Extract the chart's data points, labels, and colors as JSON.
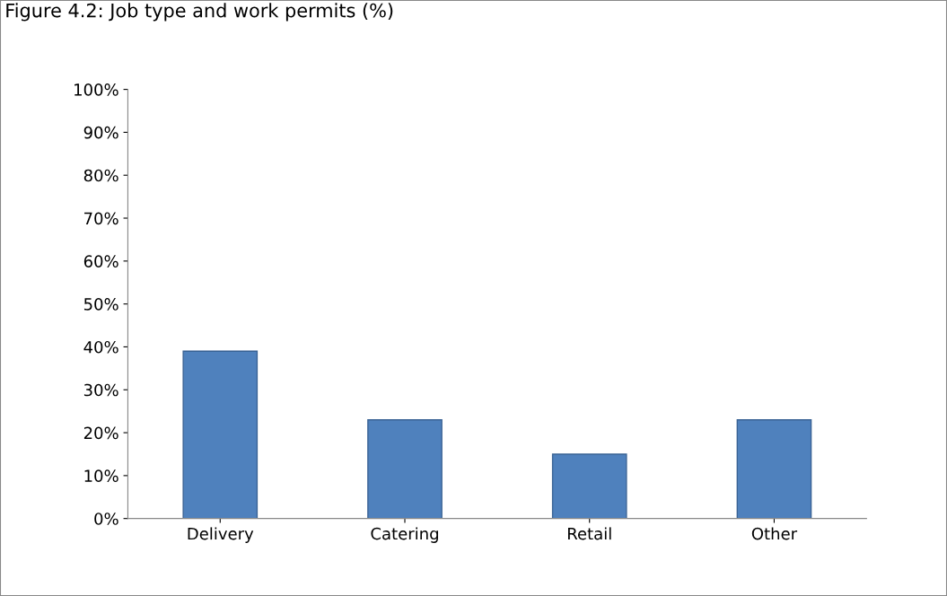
{
  "chart_data": {
    "type": "bar",
    "title": "Figure 4.2: Job type and work permits (%)",
    "categories": [
      "Delivery",
      "Catering",
      "Retail",
      "Other"
    ],
    "values": [
      39,
      23,
      15,
      23
    ],
    "color": "#4f81bd",
    "ylim": [
      0,
      100
    ],
    "yticks": [
      {
        "value": 0,
        "label": "0%"
      },
      {
        "value": 10,
        "label": "10%"
      },
      {
        "value": 20,
        "label": "20%"
      },
      {
        "value": 30,
        "label": "30%"
      },
      {
        "value": 40,
        "label": "40%"
      },
      {
        "value": 50,
        "label": "50%"
      },
      {
        "value": 60,
        "label": "60%"
      },
      {
        "value": 70,
        "label": "70%"
      },
      {
        "value": 80,
        "label": "80%"
      },
      {
        "value": 90,
        "label": "90%"
      },
      {
        "value": 100,
        "label": "100%"
      }
    ],
    "grid": false,
    "legend": false
  }
}
